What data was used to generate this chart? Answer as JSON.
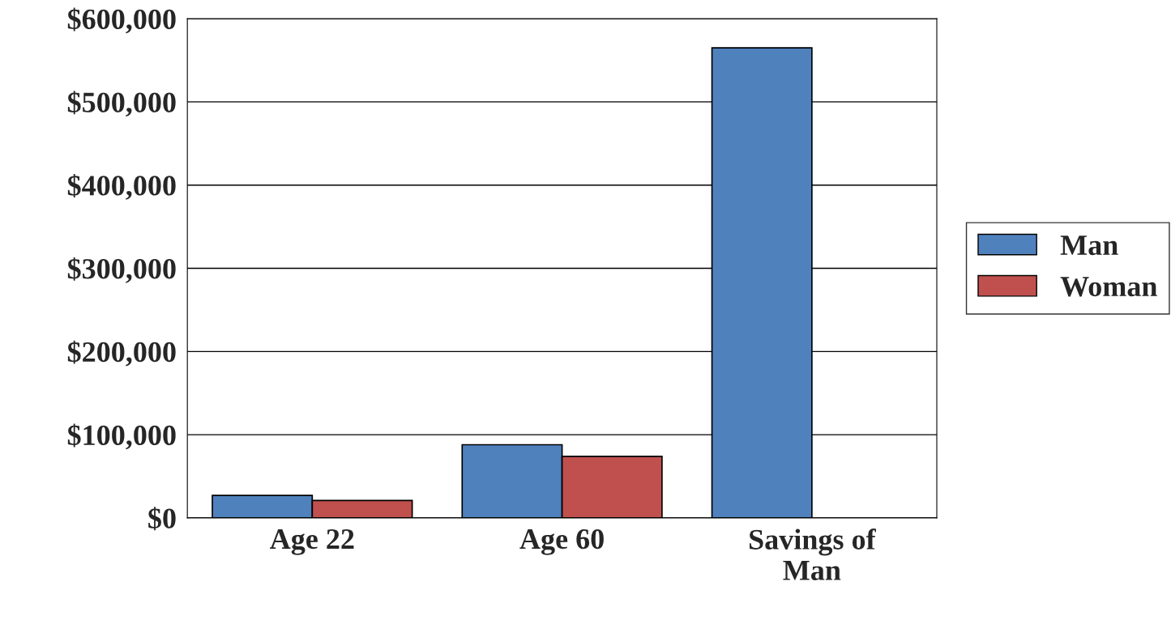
{
  "chart_data": {
    "type": "bar",
    "categories": [
      "Age 22",
      "Age 60",
      "Savings of\nMan"
    ],
    "series": [
      {
        "name": "Man",
        "color": "#4f81bd",
        "values": [
          27000,
          88000,
          565000
        ]
      },
      {
        "name": "Woman",
        "color": "#c0504d",
        "values": [
          21000,
          74000,
          null
        ]
      }
    ],
    "ylim": [
      0,
      600000
    ],
    "yticks": [
      {
        "value": 0,
        "label": "$0"
      },
      {
        "value": 100000,
        "label": "$100,000"
      },
      {
        "value": 200000,
        "label": "$200,000"
      },
      {
        "value": 300000,
        "label": "$300,000"
      },
      {
        "value": 400000,
        "label": "$400,000"
      },
      {
        "value": 500000,
        "label": "$500,000"
      },
      {
        "value": 600000,
        "label": "$600,000"
      }
    ],
    "grid": "y",
    "legend": "right"
  }
}
